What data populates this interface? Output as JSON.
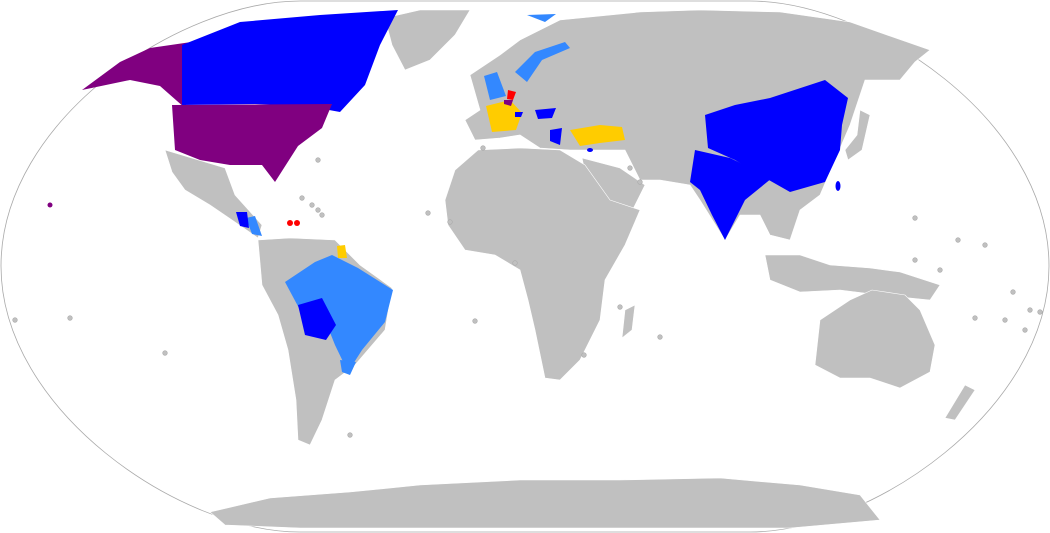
{
  "map": {
    "projection": "Robinson",
    "colors": {
      "ocean": "#ffffff",
      "outline": "#a9a9a9",
      "land_default": "#c0c0c0",
      "purple": "#800080",
      "blue": "#0000ff",
      "light_blue": "#3388ff",
      "gold": "#ffcc00",
      "red": "#ff0000",
      "small_territory_marker": "#a9a9a9"
    }
  }
}
